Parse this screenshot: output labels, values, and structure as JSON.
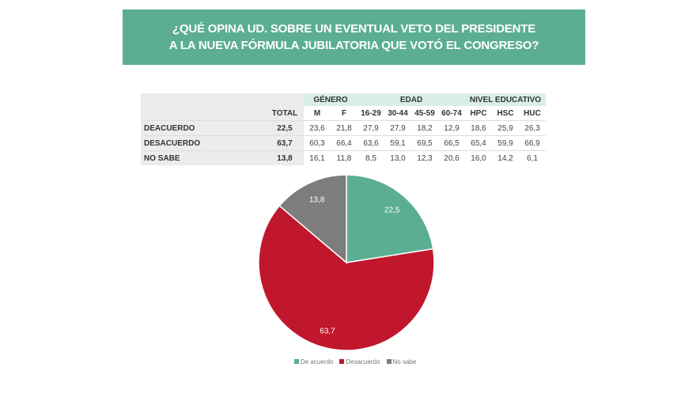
{
  "title": [
    "¿QUÉ OPINA UD. SOBRE UN EVENTUAL VETO DEL PRESIDENTE",
    "A LA NUEVA FÓRMULA JUBILATORIA QUE VOTÓ EL CONGRESO?"
  ],
  "chart_data": {
    "type": "table",
    "groups": [
      "GÉNERO",
      "EDAD",
      "NIVEL EDUCATIVO"
    ],
    "columns": [
      "TOTAL",
      "M",
      "F",
      "16-29",
      "30-44",
      "45-59",
      "60-74",
      "HPC",
      "HSC",
      "HUC"
    ],
    "rows": [
      {
        "label": "DEACUERDO",
        "values": [
          "22,5",
          "23,6",
          "21,8",
          "27,9",
          "27,9",
          "18,2",
          "12,9",
          "18,6",
          "25,9",
          "26,3"
        ]
      },
      {
        "label": "DESACUERDO",
        "values": [
          "63,7",
          "60,3",
          "66,4",
          "63,6",
          "59,1",
          "69,5",
          "66,5",
          "65,4",
          "59,9",
          "66,9"
        ]
      },
      {
        "label": "NO SABE",
        "values": [
          "13,8",
          "16,1",
          "11,8",
          "8,5",
          "13,0",
          "12,3",
          "20,6",
          "16,0",
          "14,2",
          "6,1"
        ]
      }
    ],
    "pie": {
      "type": "pie",
      "slices": [
        {
          "name": "De acuerdo",
          "value": 22.5,
          "label": "22,5",
          "color": "#5cae93"
        },
        {
          "name": "Desacuerdo",
          "value": 63.7,
          "label": "63,7",
          "color": "#c0172d"
        },
        {
          "name": "No sabe",
          "value": 13.8,
          "label": "13,8",
          "color": "#7d7d7d"
        }
      ],
      "legend": "bottom"
    }
  }
}
